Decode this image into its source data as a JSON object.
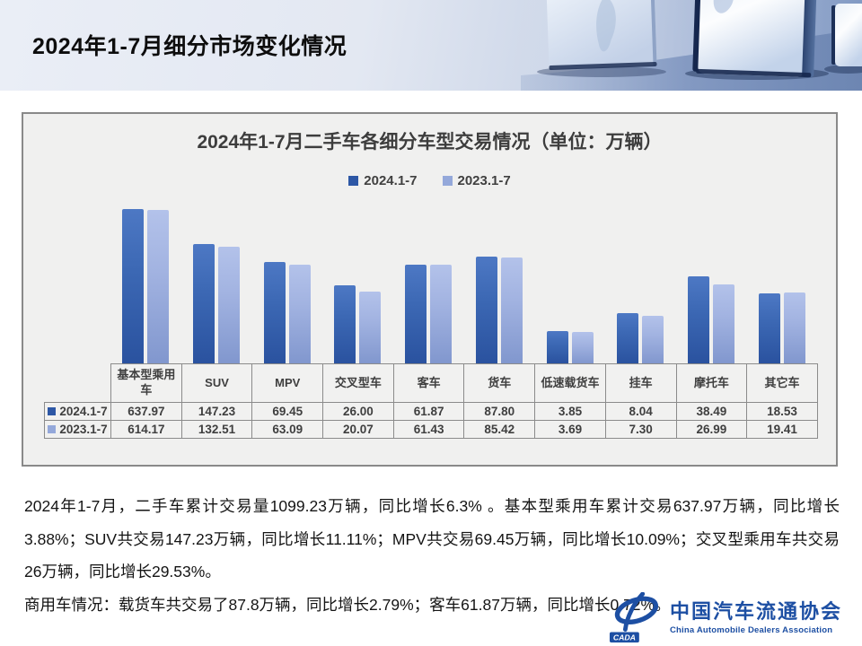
{
  "slide": {
    "title": "2024年1-7月细分市场变化情况"
  },
  "chart": {
    "title": "2024年1-7月二手车各细分车型交易情况（单位：万辆）",
    "chart_data": {
      "type": "bar",
      "title": "2024年1-7月二手车各细分车型交易情况",
      "unit": "万辆",
      "categories": [
        "基本型乘用车",
        "SUV",
        "MPV",
        "交叉型车",
        "客车",
        "货车",
        "低速载货车",
        "挂车",
        "摩托车",
        "其它车"
      ],
      "series": [
        {
          "name": "2024.1-7",
          "color": "#2d57a5",
          "values": [
            637.97,
            147.23,
            69.45,
            26.0,
            61.87,
            87.8,
            3.85,
            8.04,
            38.49,
            18.53
          ]
        },
        {
          "name": "2023.1-7",
          "color": "#94a8da",
          "values": [
            614.17,
            132.51,
            63.09,
            20.07,
            61.43,
            85.42,
            3.69,
            7.3,
            26.99,
            19.41
          ]
        }
      ],
      "y_scale": "log10",
      "ylim": [
        1,
        1000
      ],
      "legend_position": "top",
      "grid": false,
      "value_format": "2-decimals"
    }
  },
  "body": {
    "p1": "2024年1-7月，二手车累计交易量1099.23万辆，同比增长6.3% 。基本型乘用车累计交易637.97万辆，同比增长3.88%；SUV共交易147.23万辆，同比增长11.11%；MPV共交易69.45万辆，同比增长10.09%；交叉型乘用车共交易26万辆，同比增长29.53%。",
    "p2": "商用车情况：载货车共交易了87.8万辆，同比增长2.79%；客车61.87万辆，同比增长0.72%。"
  },
  "logo": {
    "badge": "CADA",
    "cn": "中国汽车流通协会",
    "en": "China Automobile Dealers Association"
  }
}
